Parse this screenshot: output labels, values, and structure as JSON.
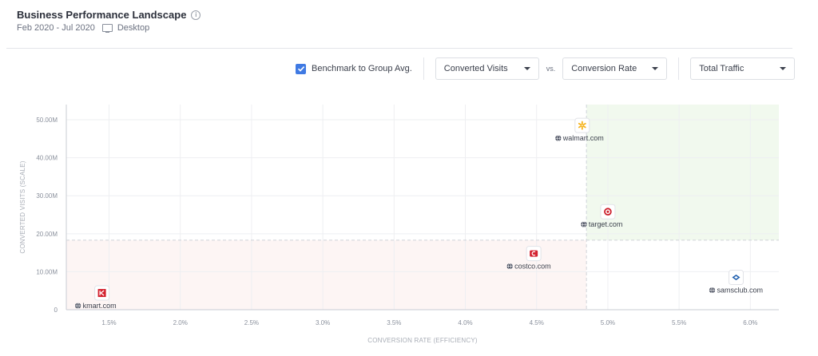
{
  "header": {
    "title": "Business Performance Landscape",
    "date_range": "Feb 2020 - Jul 2020",
    "device": "Desktop"
  },
  "controls": {
    "benchmark_label": "Benchmark to Group Avg.",
    "benchmark_checked": true,
    "y_metric": "Converted Visits",
    "vs_label": "vs.",
    "x_metric": "Conversion Rate",
    "size_metric": "Total Traffic"
  },
  "chart_data": {
    "type": "scatter",
    "xlabel": "CONVERSION RATE (EFFICIENCY)",
    "ylabel": "CONVERTED VISITS (SCALE)",
    "xlim": [
      1.2,
      6.2
    ],
    "ylim": [
      0,
      54
    ],
    "x_ticks": [
      "1.5%",
      "2.0%",
      "2.5%",
      "3.0%",
      "3.5%",
      "4.0%",
      "4.5%",
      "5.0%",
      "5.5%",
      "6.0%"
    ],
    "y_ticks": [
      "0",
      "10.00M",
      "20.00M",
      "30.00M",
      "40.00M",
      "50.00M"
    ],
    "benchmark": {
      "x": 4.85,
      "y": 18.3
    },
    "grid": true,
    "points": [
      {
        "name": "walmart.com",
        "x": 4.82,
        "y": 48.5,
        "icon": "walmart-spark-icon",
        "color": "#f5b21a"
      },
      {
        "name": "target.com",
        "x": 5.0,
        "y": 25.8,
        "icon": "target-bullseye-icon",
        "color": "#cc1f2b"
      },
      {
        "name": "costco.com",
        "x": 4.48,
        "y": 14.8,
        "icon": "costco-logo-icon",
        "color": "#d3212f"
      },
      {
        "name": "samsclub.com",
        "x": 5.9,
        "y": 8.5,
        "icon": "samsclub-diamond-icon",
        "color": "#1f5fae"
      },
      {
        "name": "kmart.com",
        "x": 1.45,
        "y": 4.4,
        "icon": "kmart-logo-icon",
        "color": "#d3212f"
      }
    ]
  }
}
